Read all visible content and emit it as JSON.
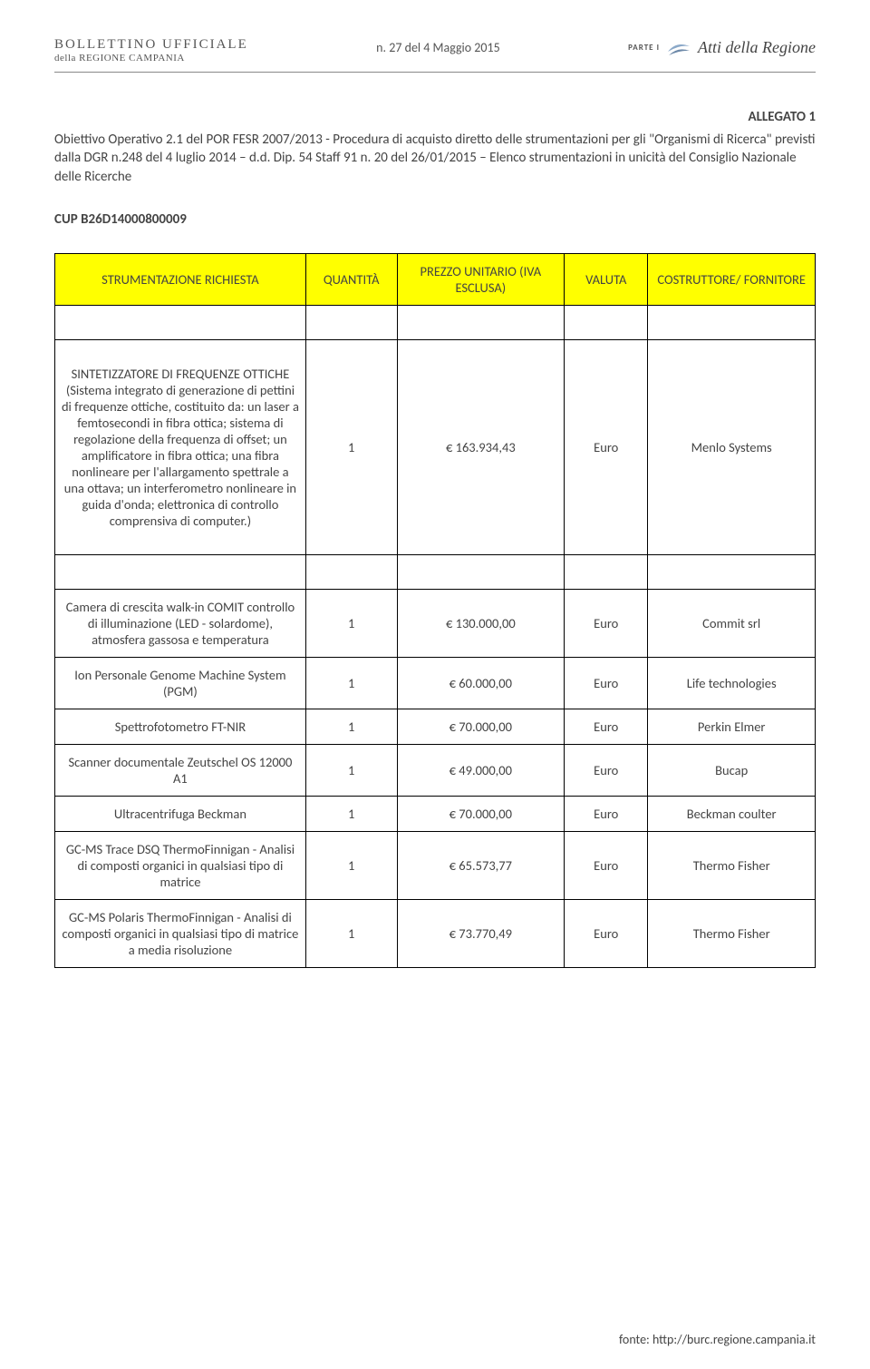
{
  "header": {
    "bu_line1": "BOLLETTINO UFFICIALE",
    "bu_line2": "della REGIONE CAMPANIA",
    "issue": "n. 27 del  4 Maggio 2015",
    "parte": "PARTE I",
    "atti": "Atti della Regione"
  },
  "allegato": "ALLEGATO 1",
  "intro": "Obiettivo Operativo 2.1 del POR FESR 2007/2013 - Procedura di acquisto diretto delle strumentazioni per gli \"Organismi di Ricerca\" previsti dalla DGR n.248 del 4 luglio 2014 – d.d. Dip. 54  Staff 91 n. 20 del 26/01/2015 – Elenco strumentazioni in unicità del Consiglio Nazionale delle Ricerche",
  "cup": "CUP B26D14000800009",
  "table": {
    "columns": [
      "STRUMENTAZIONE RICHIESTA",
      "QUANTITÀ",
      "PREZZO UNITARIO (IVA ESCLUSA)",
      "VALUTA",
      "COSTRUTTORE/ FORNITORE"
    ],
    "rows": [
      {
        "desc": "SINTETIZZATORE DI FREQUENZE OTTICHE (Sistema integrato di generazione di pettini di frequenze ottiche, costituito da: un laser a femtosecondi in fibra ottica; sistema di regolazione della frequenza di offset; un amplificatore in fibra ottica; una fibra nonlineare per l'allargamento spettrale a una ottava; un interferometro nonlineare in guida d'onda; elettronica di controllo comprensiva di computer.)",
        "qty": "1",
        "price": "€            163.934,43",
        "currency": "Euro",
        "vendor": "Menlo Systems",
        "tall": true
      },
      {
        "desc": "Camera di crescita walk-in COMIT controllo di illuminazione (LED - solardome), atmosfera gassosa e temperatura",
        "qty": "1",
        "price": "€            130.000,00",
        "currency": "Euro",
        "vendor": "Commit srl"
      },
      {
        "desc": "Ion Personale Genome Machine System (PGM)",
        "qty": "1",
        "price": "€              60.000,00",
        "currency": "Euro",
        "vendor": "Life technologies"
      },
      {
        "desc": "Spettrofotometro FT-NIR",
        "qty": "1",
        "price": "€              70.000,00",
        "currency": "Euro",
        "vendor": "Perkin Elmer"
      },
      {
        "desc": "Scanner documentale Zeutschel OS 12000 A1",
        "qty": "1",
        "price": "€              49.000,00",
        "currency": "Euro",
        "vendor": "Bucap"
      },
      {
        "desc": "Ultracentrifuga Beckman",
        "qty": "1",
        "price": "€              70.000,00",
        "currency": "Euro",
        "vendor": "Beckman coulter"
      },
      {
        "desc": "GC-MS Trace DSQ ThermoFinnigan - Analisi di composti organici in qualsiasi tipo di matrice",
        "qty": "1",
        "price": "€              65.573,77",
        "currency": "Euro",
        "vendor": "Thermo Fisher"
      },
      {
        "desc": "GC-MS Polaris ThermoFinnigan - Analisi di composti organici in qualsiasi tipo di matrice a media risoluzione",
        "qty": "1",
        "price": "€              73.770,49",
        "currency": "Euro",
        "vendor": "Thermo Fisher"
      }
    ]
  },
  "footer": "fonte: http://burc.regione.campania.it",
  "colors": {
    "header_bg": "#ffff00",
    "border": "#000000",
    "text": "#444444",
    "page_bg": "#ffffff"
  }
}
